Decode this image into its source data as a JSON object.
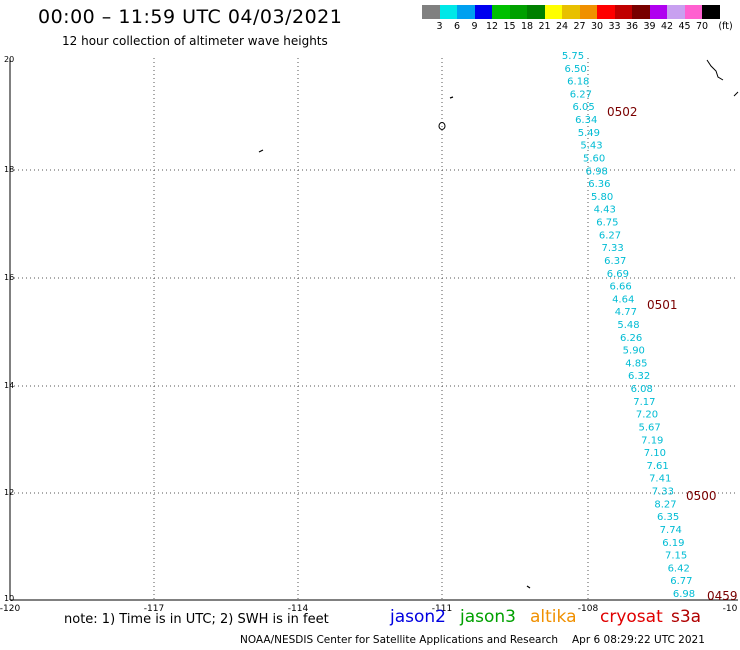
{
  "header": {
    "title": "00:00 – 11:59 UTC 04/03/2021",
    "subtitle": "12 hour collection of altimeter wave heights"
  },
  "legend": {
    "unit": "(ft)",
    "colors": [
      "#808080",
      "#00e8e8",
      "#00a0f0",
      "#0000f0",
      "#00c000",
      "#00a000",
      "#008000",
      "#ffff00",
      "#e8c000",
      "#f09000",
      "#ff0000",
      "#c00000",
      "#780000",
      "#b000f0",
      "#c8a0f0",
      "#ff60d0",
      "#000000"
    ],
    "labels": [
      "3",
      "6",
      "9",
      "12",
      "15",
      "18",
      "21",
      "24",
      "27",
      "30",
      "33",
      "36",
      "39",
      "42",
      "45",
      "70"
    ]
  },
  "axes": {
    "lat_labels": [
      "20",
      "18",
      "16",
      "14",
      "12",
      "10"
    ],
    "lon_labels": [
      "-120",
      "-117",
      "-114",
      "-111",
      "-108",
      "-10"
    ]
  },
  "track": {
    "color": "#00bcd4",
    "values": [
      "5.75",
      "6.50",
      "6.18",
      "6.27",
      "6.05",
      "6.34",
      "5.49",
      "5.43",
      "5.60",
      "6.98",
      "6.36",
      "5.80",
      "4.43",
      "6.75",
      "6.27",
      "7.33",
      "6.37",
      "6.69",
      "6.66",
      "4.64",
      "4.77",
      "5.48",
      "6.26",
      "5.90",
      "4.85",
      "6.32",
      "6.08",
      "7.17",
      "7.20",
      "5.67",
      "7.19",
      "7.10",
      "7.61",
      "7.41",
      "7.33",
      "8.27",
      "6.35",
      "7.74",
      "6.19",
      "7.15",
      "6.42",
      "6.77",
      "6.98"
    ]
  },
  "times": {
    "color": "#7a0000",
    "labels": [
      "0502",
      "0501",
      "0500",
      "0459"
    ]
  },
  "footer": {
    "note": "note: 1) Time is in UTC; 2) SWH is in feet",
    "satellites": [
      {
        "name": "jason2",
        "color": "#0000e0"
      },
      {
        "name": "jason3",
        "color": "#00a000"
      },
      {
        "name": "altika",
        "color": "#f09000"
      },
      {
        "name": "cryosat",
        "color": "#e00000"
      },
      {
        "name": "s3a",
        "color": "#b00000"
      }
    ],
    "credit": "NOAA/NESDIS Center for Satellite Applications and Research",
    "generated": "Apr  6 08:29:22 UTC 2021"
  }
}
